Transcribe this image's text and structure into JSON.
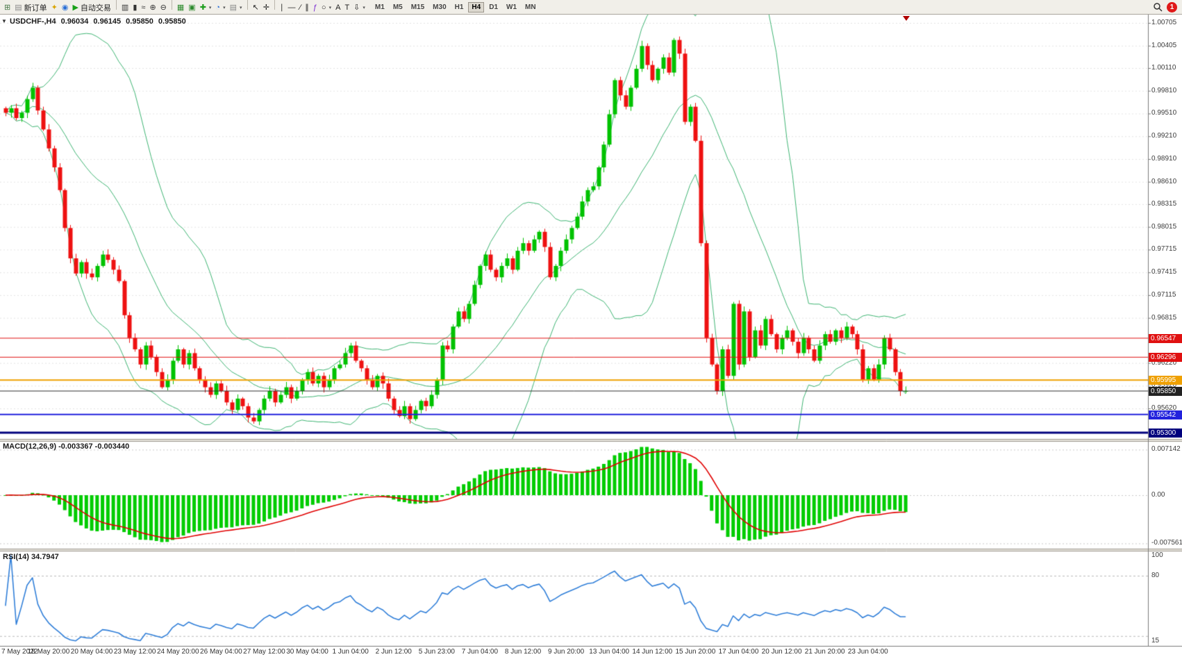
{
  "app": {
    "notification_count": "1"
  },
  "toolbar": {
    "items": [
      {
        "name": "new-chart-button",
        "glyph": "⊞",
        "color": "#4a7a4a"
      },
      {
        "name": "new-order-button",
        "glyph": "▤",
        "color": "#8a8a8a",
        "label": "新订单"
      },
      {
        "name": "metaeditor-button",
        "glyph": "✦",
        "color": "#d9a400"
      },
      {
        "name": "market-watch-button",
        "glyph": "◉",
        "color": "#2a6fd6"
      },
      {
        "name": "autotrading-button",
        "glyph": "▶",
        "color": "#18a018",
        "label": "自动交易"
      },
      {
        "sep": true
      },
      {
        "name": "bar-chart-button",
        "glyph": "▥",
        "color": "#333333"
      },
      {
        "name": "candlestick-chart-button",
        "glyph": "▮",
        "color": "#333333"
      },
      {
        "name": "line-chart-button",
        "glyph": "≈",
        "color": "#333333"
      },
      {
        "name": "zoom-in-button",
        "glyph": "⊕",
        "color": "#333333"
      },
      {
        "name": "zoom-out-button",
        "glyph": "⊖",
        "color": "#333333"
      },
      {
        "sep": true
      },
      {
        "name": "tile-windows-button",
        "glyph": "▦",
        "color": "#2e8b2e"
      },
      {
        "name": "auto-arrange-button",
        "glyph": "▣",
        "color": "#2e8b2e"
      },
      {
        "name": "indicators-button",
        "glyph": "✚",
        "color": "#1a9c1a",
        "caret": true
      },
      {
        "name": "periods-button",
        "glyph": "◔",
        "color": "#2a6fd6",
        "caret": true
      },
      {
        "name": "templates-button",
        "glyph": "▤",
        "color": "#888888",
        "caret": true
      },
      {
        "sep": true
      },
      {
        "name": "cursor-button",
        "glyph": "↖",
        "color": "#222222"
      },
      {
        "name": "crosshair-button",
        "glyph": "✛",
        "color": "#222222"
      },
      {
        "sep": true
      },
      {
        "name": "vertical-line-button",
        "glyph": "∣",
        "color": "#222222"
      },
      {
        "name": "horizontal-line-button",
        "glyph": "―",
        "color": "#222222"
      },
      {
        "name": "trendline-button",
        "glyph": "∕",
        "color": "#222222"
      },
      {
        "name": "channel-button",
        "glyph": "∥",
        "color": "#222222"
      },
      {
        "name": "fibonacci-button",
        "glyph": "ƒ",
        "color": "#7a2bd2"
      },
      {
        "name": "shapes-button",
        "glyph": "○",
        "color": "#222222",
        "caret": true
      },
      {
        "name": "text-button",
        "glyph": "A",
        "color": "#222222"
      },
      {
        "name": "label-button",
        "glyph": "T",
        "color": "#222222"
      },
      {
        "name": "arrows-button",
        "glyph": "⇩",
        "color": "#222222",
        "caret": true
      }
    ],
    "timeframes": [
      {
        "label": "M1"
      },
      {
        "label": "M5"
      },
      {
        "label": "M15"
      },
      {
        "label": "M30"
      },
      {
        "label": "H1"
      },
      {
        "label": "H4",
        "active": true
      },
      {
        "label": "D1"
      },
      {
        "label": "W1"
      },
      {
        "label": "MN"
      }
    ]
  },
  "chart": {
    "one_click_glyph": "▼",
    "title": {
      "symbol": "USDCHF-,H4",
      "open": "0.96034",
      "high": "0.96145",
      "low": "0.95850",
      "close": "0.95850"
    },
    "macd_label": "MACD(12,26,9) -0.003367 -0.003440",
    "rsi_label": "RSI(14) 34.7947"
  },
  "chart_data": {
    "type": "candlestick",
    "symbol": "USDCHF",
    "timeframe": "H4",
    "colors": {
      "up": "#00c200",
      "down": "#ee1111",
      "bollinger": "#3cb371",
      "macd_histogram": "#00cc00",
      "macd_signal": "#e00000",
      "rsi_line": "#2f7ed8",
      "grid": "#e3e3e3",
      "axis": "#7a7a7a"
    },
    "closes": [
      0.9952,
      0.9958,
      0.9945,
      0.9952,
      0.997,
      0.9985,
      0.9955,
      0.993,
      0.9905,
      0.988,
      0.985,
      0.98,
      0.976,
      0.974,
      0.9755,
      0.974,
      0.9735,
      0.975,
      0.9765,
      0.9758,
      0.9745,
      0.973,
      0.9685,
      0.9655,
      0.964,
      0.962,
      0.9645,
      0.963,
      0.961,
      0.959,
      0.96,
      0.9625,
      0.964,
      0.962,
      0.9635,
      0.9615,
      0.96,
      0.959,
      0.958,
      0.9595,
      0.9585,
      0.957,
      0.956,
      0.9575,
      0.9565,
      0.955,
      0.9545,
      0.956,
      0.9575,
      0.9585,
      0.957,
      0.958,
      0.959,
      0.9575,
      0.9585,
      0.96,
      0.961,
      0.9595,
      0.9605,
      0.959,
      0.96,
      0.9615,
      0.962,
      0.9635,
      0.9645,
      0.9625,
      0.9615,
      0.96,
      0.959,
      0.9605,
      0.9595,
      0.9575,
      0.956,
      0.9552,
      0.9565,
      0.9548,
      0.956,
      0.9572,
      0.9565,
      0.958,
      0.96,
      0.9645,
      0.964,
      0.967,
      0.969,
      0.968,
      0.97,
      0.9725,
      0.975,
      0.9765,
      0.9745,
      0.9735,
      0.975,
      0.976,
      0.9745,
      0.977,
      0.978,
      0.977,
      0.9785,
      0.9795,
      0.9775,
      0.9735,
      0.975,
      0.977,
      0.9785,
      0.98,
      0.9815,
      0.9835,
      0.985,
      0.9855,
      0.988,
      0.991,
      0.995,
      0.9995,
      0.9975,
      0.996,
      0.9985,
      1.001,
      1.004,
      1.0015,
      0.9995,
      1.001,
      1.0025,
      1.0005,
      1.0048,
      1.003,
      0.994,
      0.996,
      0.9915,
      0.978,
      0.9655,
      0.962,
      0.9585,
      0.964,
      0.9605,
      0.97,
      0.962,
      0.969,
      0.963,
      0.9665,
      0.9645,
      0.968,
      0.966,
      0.964,
      0.9655,
      0.9665,
      0.965,
      0.9635,
      0.9655,
      0.964,
      0.9625,
      0.9645,
      0.966,
      0.965,
      0.9665,
      0.9655,
      0.967,
      0.966,
      0.964,
      0.96,
      0.9615,
      0.96,
      0.962,
      0.9655,
      0.964,
      0.961,
      0.9585,
      0.9585
    ],
    "indicators": {
      "bollinger": {
        "period": 20,
        "deviation": 2
      },
      "macd": {
        "fast": 12,
        "slow": 26,
        "signal": 9,
        "value": -0.003367,
        "signal_value": -0.00344
      },
      "rsi": {
        "period": 14,
        "value": 34.7947
      }
    },
    "horizontal_lines": [
      {
        "price": 0.96547,
        "label": "0.96547",
        "color": "#e01010",
        "width": 1
      },
      {
        "price": 0.96296,
        "label": "0.96296",
        "color": "#e01010",
        "width": 1
      },
      {
        "price": 0.95995,
        "label": "0.95995",
        "color": "#efa000",
        "width": 2
      },
      {
        "price": 0.9585,
        "label": "0.95850",
        "color": "#2e2e2e",
        "width": 1
      },
      {
        "price": 0.95542,
        "label": "0.95542",
        "color": "#2222dd",
        "width": 2
      },
      {
        "price": 0.953,
        "label": "0.95300",
        "color": "#00007d",
        "width": 3
      }
    ],
    "y_axis_ticks": [
      {
        "text": "1.00705",
        "value": 1.00705
      },
      {
        "text": "1.00405",
        "value": 1.00405
      },
      {
        "text": "1.00110",
        "value": 1.0011
      },
      {
        "text": "0.99810",
        "value": 0.9981
      },
      {
        "text": "0.99510",
        "value": 0.9951
      },
      {
        "text": "0.99210",
        "value": 0.9921
      },
      {
        "text": "0.98910",
        "value": 0.9891
      },
      {
        "text": "0.98610",
        "value": 0.9861
      },
      {
        "text": "0.98315",
        "value": 0.98315
      },
      {
        "text": "0.98015",
        "value": 0.98015
      },
      {
        "text": "0.97715",
        "value": 0.97715
      },
      {
        "text": "0.97415",
        "value": 0.97415
      },
      {
        "text": "0.97115",
        "value": 0.97115
      },
      {
        "text": "0.96815",
        "value": 0.96815
      },
      {
        "text": "0.96220",
        "value": 0.9622
      },
      {
        "text": "0.95920",
        "value": 0.9592
      },
      {
        "text": "0.95620",
        "value": 0.9562
      }
    ],
    "macd_axis_ticks": [
      {
        "text": "0.007142",
        "value": 0.007142
      },
      {
        "text": "0.00",
        "value": 0
      },
      {
        "text": "-0.007561",
        "value": -0.007561
      }
    ],
    "rsi_axis_ticks": [
      {
        "text": "100",
        "value": 100
      },
      {
        "text": "80",
        "value": 80
      },
      {
        "text": "15",
        "value": 15
      }
    ],
    "rsi_levels": [
      80,
      20
    ],
    "x_axis_labels": [
      "7 May 2022",
      "18 May 20:00",
      "20 May 04:00",
      "23 May 12:00",
      "24 May 20:00",
      "26 May 04:00",
      "27 May 12:00",
      "30 May 04:00",
      "1 Jun 04:00",
      "2 Jun 12:00",
      "5 Jun 23:00",
      "7 Jun 04:00",
      "8 Jun 12:00",
      "9 Jun 20:00",
      "13 Jun 04:00",
      "14 Jun 12:00",
      "15 Jun 20:00",
      "17 Jun 04:00",
      "20 Jun 12:00",
      "21 Jun 20:00",
      "23 Jun 04:00"
    ]
  }
}
